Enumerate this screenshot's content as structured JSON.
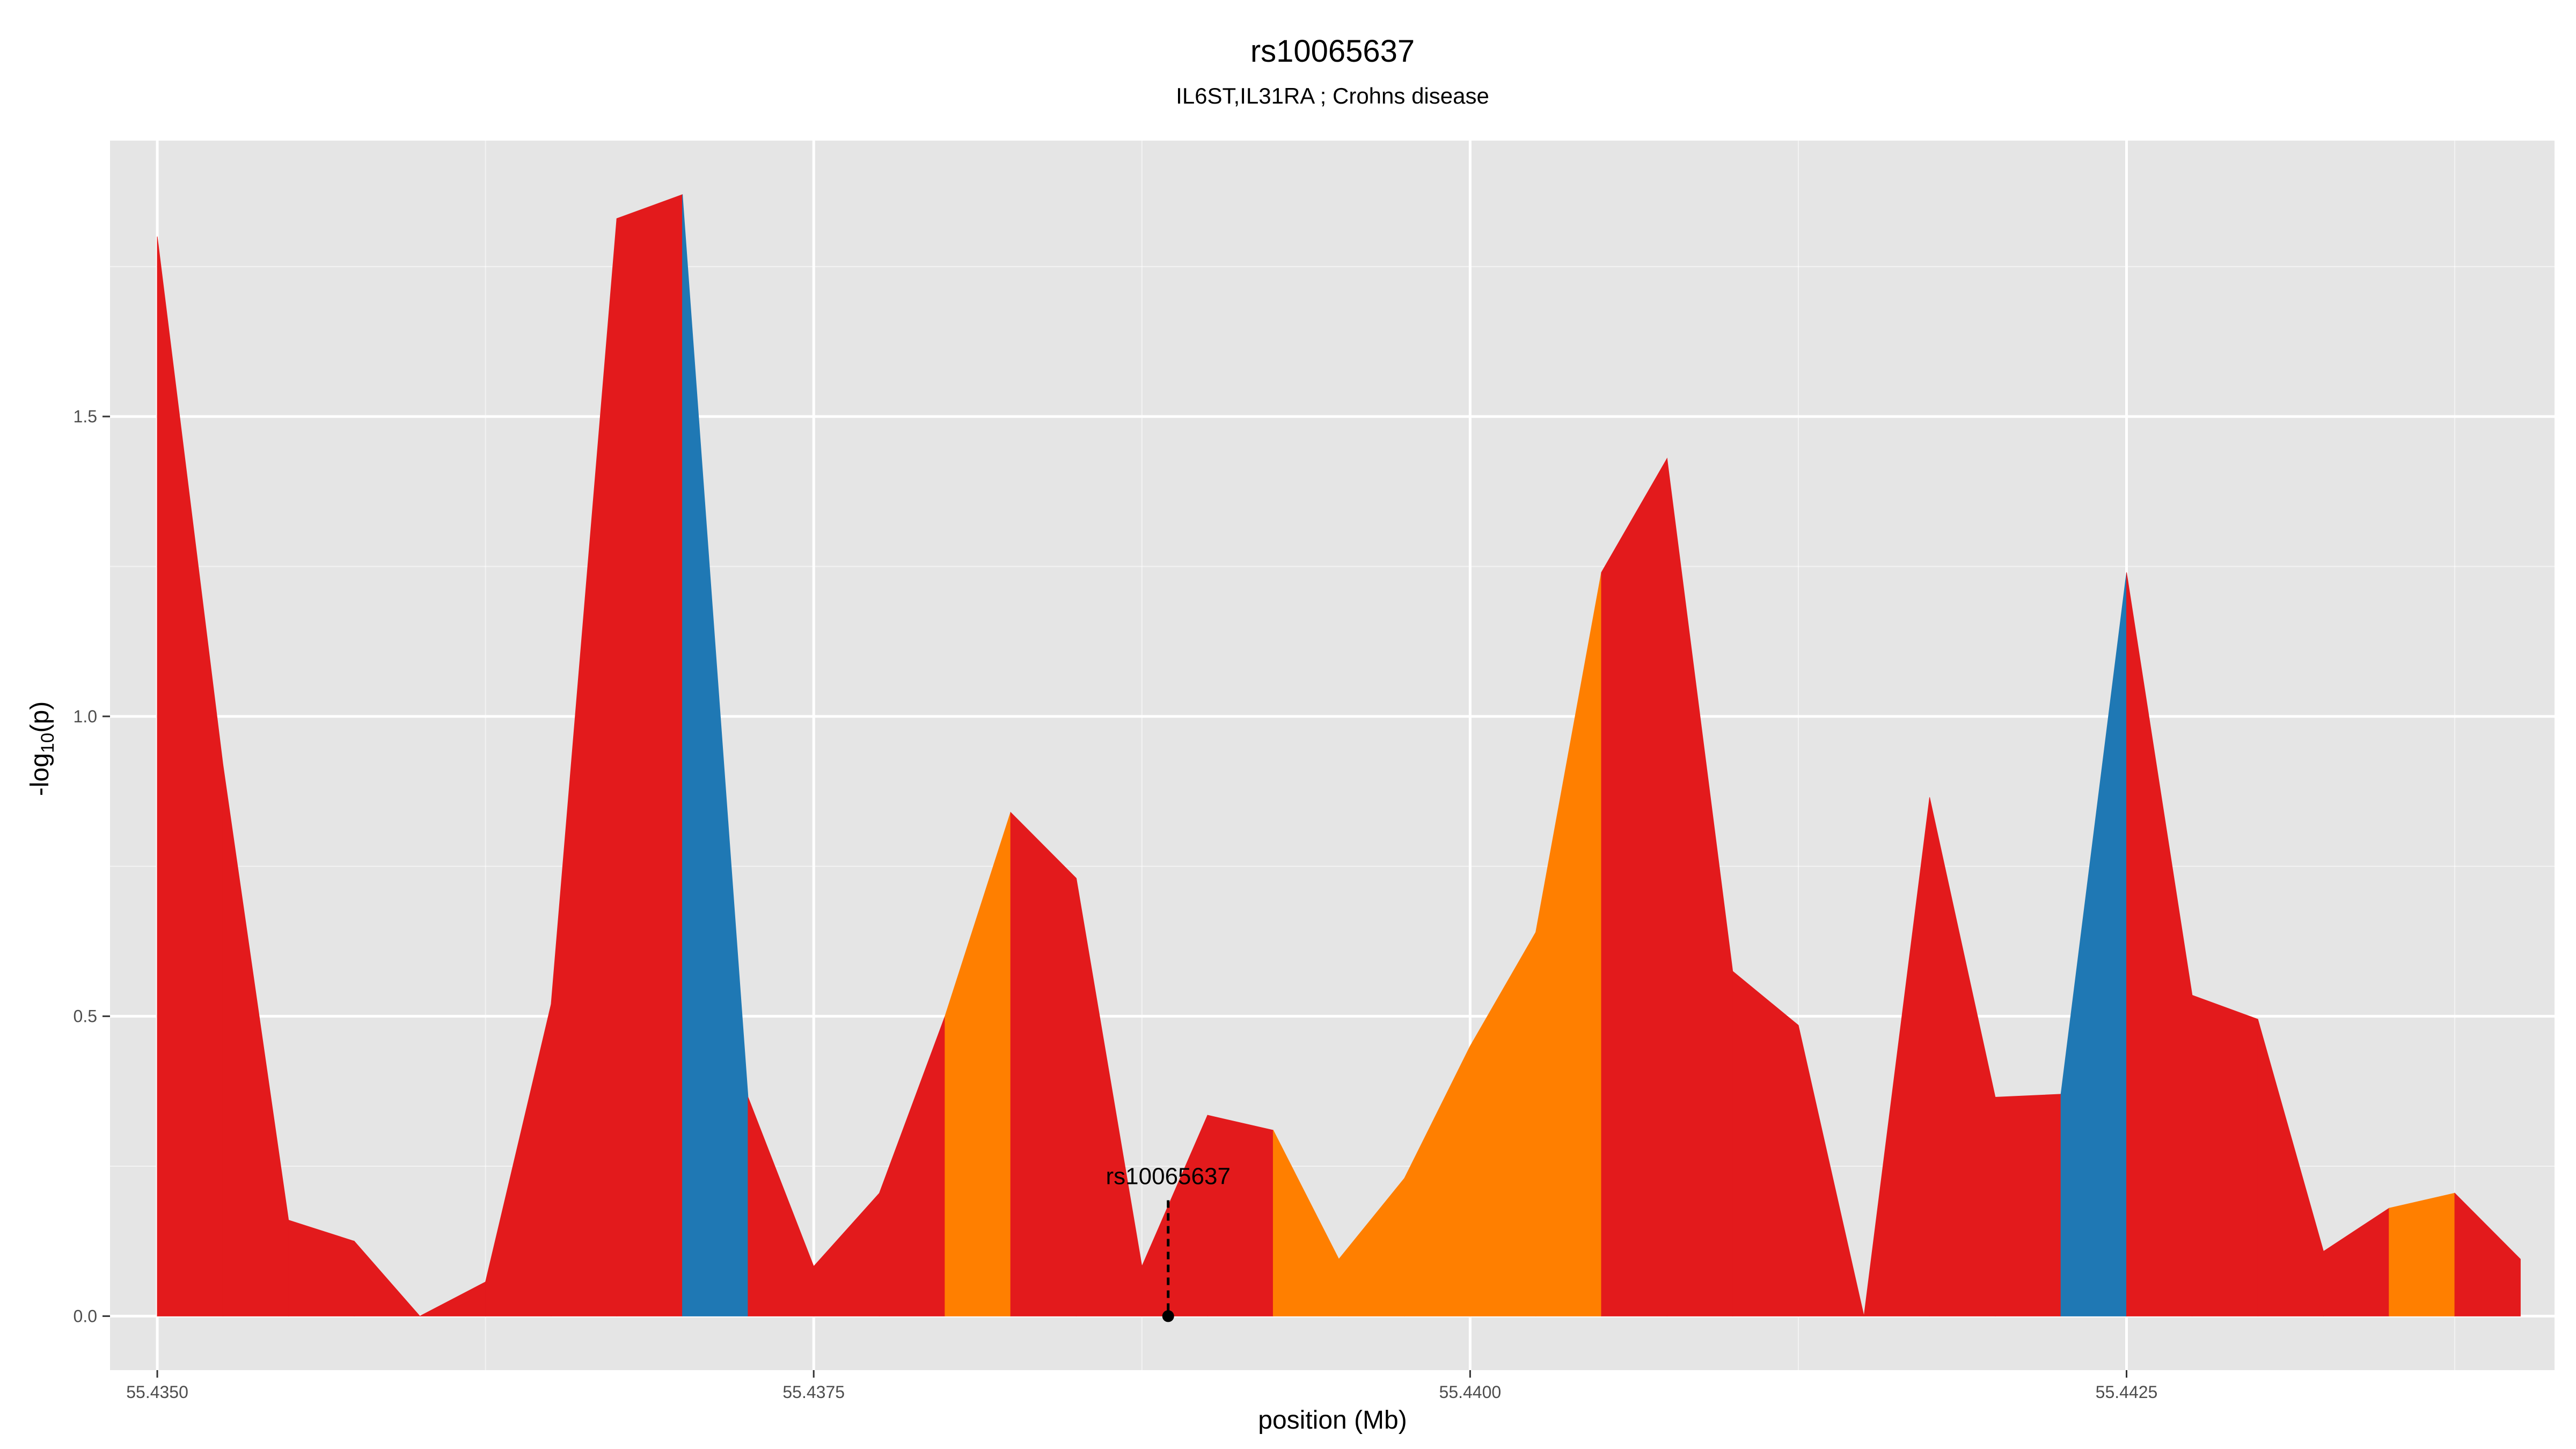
{
  "chart_data": {
    "type": "area",
    "title": "rs10065637",
    "subtitle": "IL6ST,IL31RA ; Crohns disease",
    "xlabel": "position (Mb)",
    "ylabel_main": "-log",
    "ylabel_sub": "10",
    "ylabel_tail": "(p)",
    "xlim": [
      55.43482,
      55.44413
    ],
    "ylim": [
      -0.09,
      1.96
    ],
    "x_ticks": [
      55.435,
      55.4375,
      55.44,
      55.4425
    ],
    "x_tick_labels": [
      "55.4350",
      "55.4375",
      "55.4400",
      "55.4425"
    ],
    "y_ticks": [
      0,
      0.5,
      1,
      1.5
    ],
    "y_tick_labels": [
      "0.0",
      "0.5",
      "1.0",
      "1.5"
    ],
    "grid": true,
    "colors": {
      "red": "#E31A1C",
      "orange": "#FF7F00",
      "blue": "#1F78B4",
      "panel": "#E5E5E5",
      "grid": "#FFFFFF"
    },
    "points": [
      {
        "x": 55.435,
        "y": 1.8
      },
      {
        "x": 55.43525,
        "y": 0.92
      },
      {
        "x": 55.4355,
        "y": 0.16
      },
      {
        "x": 55.43575,
        "y": 0.125
      },
      {
        "x": 55.436,
        "y": 0.0
      },
      {
        "x": 55.43625,
        "y": 0.057
      },
      {
        "x": 55.4365,
        "y": 0.52
      },
      {
        "x": 55.43675,
        "y": 1.83
      },
      {
        "x": 55.437,
        "y": 1.87
      },
      {
        "x": 55.43725,
        "y": 0.365
      },
      {
        "x": 55.4375,
        "y": 0.083
      },
      {
        "x": 55.43775,
        "y": 0.205
      },
      {
        "x": 55.438,
        "y": 0.5
      },
      {
        "x": 55.43825,
        "y": 0.84
      },
      {
        "x": 55.4385,
        "y": 0.73
      },
      {
        "x": 55.43875,
        "y": 0.083
      },
      {
        "x": 55.439,
        "y": 0.335
      },
      {
        "x": 55.43925,
        "y": 0.31
      },
      {
        "x": 55.4395,
        "y": 0.095
      },
      {
        "x": 55.43975,
        "y": 0.23
      },
      {
        "x": 55.44,
        "y": 0.45
      },
      {
        "x": 55.44025,
        "y": 0.64
      },
      {
        "x": 55.4405,
        "y": 1.24
      },
      {
        "x": 55.44075,
        "y": 1.43
      },
      {
        "x": 55.441,
        "y": 0.575
      },
      {
        "x": 55.44125,
        "y": 0.485
      },
      {
        "x": 55.4415,
        "y": 0.0
      },
      {
        "x": 55.44175,
        "y": 0.865
      },
      {
        "x": 55.442,
        "y": 0.365
      },
      {
        "x": 55.44225,
        "y": 0.37
      },
      {
        "x": 55.4425,
        "y": 1.24
      },
      {
        "x": 55.44275,
        "y": 0.535
      },
      {
        "x": 55.443,
        "y": 0.495
      },
      {
        "x": 55.44325,
        "y": 0.108
      },
      {
        "x": 55.4435,
        "y": 0.18
      },
      {
        "x": 55.44375,
        "y": 0.205
      },
      {
        "x": 55.444,
        "y": 0.095
      }
    ],
    "segment_colors": [
      "red",
      "red",
      "red",
      "red",
      "red",
      "red",
      "red",
      "red",
      "blue",
      "red",
      "red",
      "red",
      "orange",
      "red",
      "red",
      "red",
      "red",
      "orange",
      "orange",
      "orange",
      "orange",
      "orange",
      "red",
      "red",
      "red",
      "red",
      "red",
      "red",
      "red",
      "blue",
      "red",
      "red",
      "red",
      "red",
      "orange",
      "red"
    ],
    "annotation": {
      "label": "rs10065637",
      "x": 55.43885,
      "y": 0,
      "label_y": 0.22
    }
  }
}
